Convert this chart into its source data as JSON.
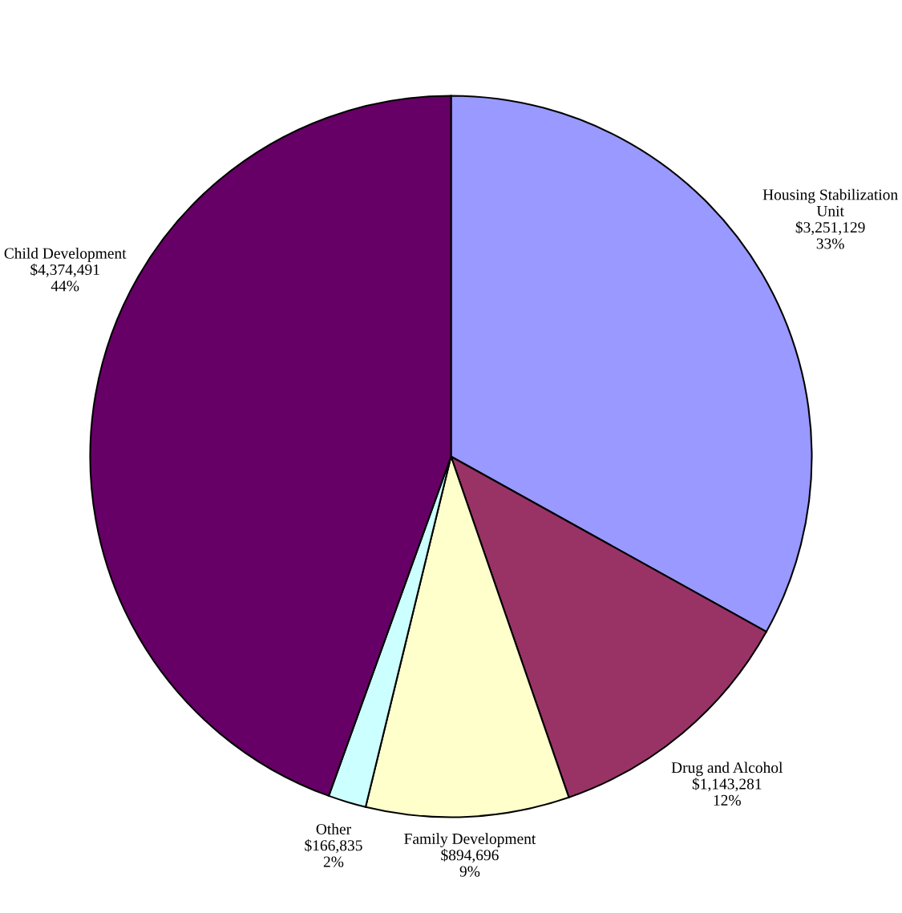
{
  "chart_data": {
    "type": "pie",
    "categories": [
      "Housing Stabilization\nUnit",
      "Drug and Alcohol",
      "Family Development",
      "Other",
      "Child Development"
    ],
    "values": [
      3251129,
      1143281,
      894696,
      166835,
      4374491
    ],
    "value_labels": [
      "$3,251,129\n33%",
      "$1,143,281\n12%",
      "$894,696\n9%",
      "$166,835\n2%",
      "$4,374,491\n44%"
    ],
    "colors": [
      "#9999ff",
      "#993366",
      "#ffffcc",
      "#ccffff",
      "#660066"
    ]
  }
}
